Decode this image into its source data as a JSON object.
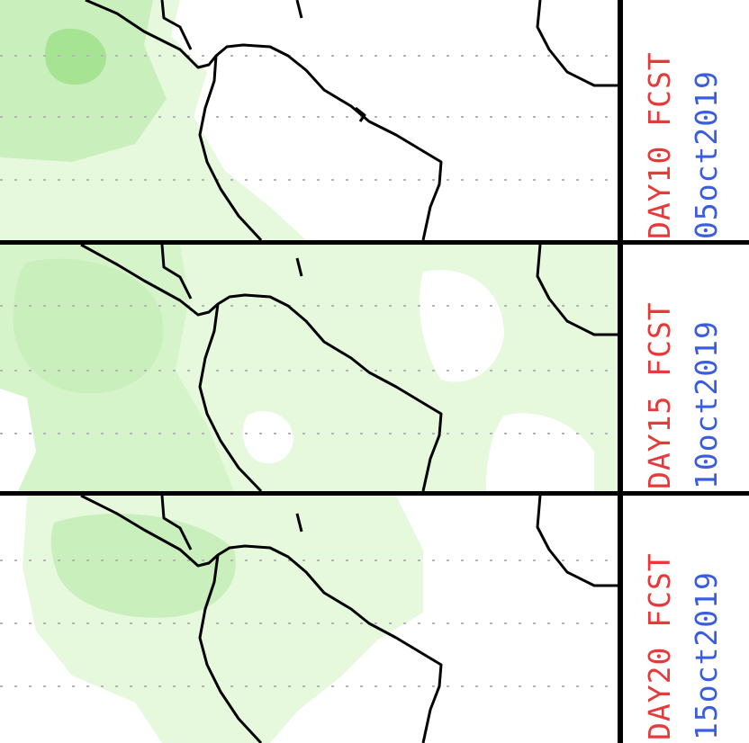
{
  "colors": {
    "background": "#ffffff",
    "precip_light": "#e6f9dd",
    "precip_medium": "#c9efbc",
    "precip_heavy": "#a6e493",
    "coastline": "#000000",
    "gridline": "#b5b5b5",
    "label_red": "#e63a3a",
    "label_blue": "#3a5de0"
  },
  "panels": [
    {
      "day_label": "DAY10 FCST",
      "date_label": "05oct2019"
    },
    {
      "day_label": "DAY15 FCST",
      "date_label": "10oct2019"
    },
    {
      "day_label": "DAY20 FCST",
      "date_label": "15oct2019"
    }
  ]
}
